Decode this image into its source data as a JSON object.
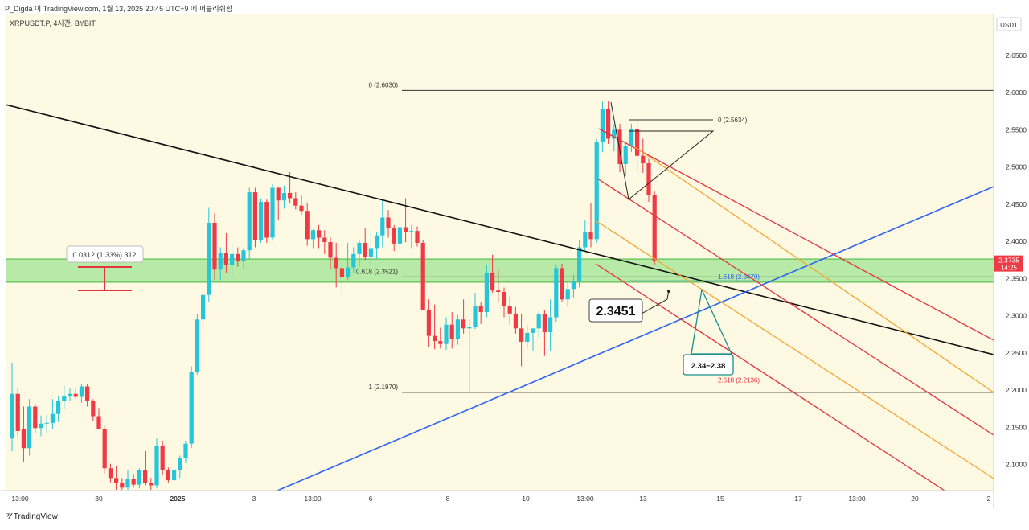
{
  "header": {
    "publish_line": "P_Digda 이 TradingView.com, 1월 13, 2025 20:45 UTC+9 에 퍼블리쉬함"
  },
  "footer": {
    "brand": "TradingView",
    "logo_icon": "tradingview-logo-icon"
  },
  "colors": {
    "background": "#fdf9e3",
    "up": "#26c6da",
    "down": "#ef3a46",
    "zone": "#6fdc6a",
    "trend_black": "#111111",
    "trend_blue": "#2f63f0",
    "fib_red": "#e2333f",
    "fib_orange": "#f6a531",
    "arrow_teal": "#1a8f8f"
  },
  "chart_data": {
    "type": "candlestick",
    "symbol_label": "XRPUSDT.P, 4시간, BYBIT",
    "currency_label": "USDT",
    "ylim": [
      2.065,
      2.705
    ],
    "y_ticks": [
      "2.6500",
      "2.6000",
      "2.5500",
      "2.5000",
      "2.4500",
      "2.4000",
      "2.3500",
      "2.3000",
      "2.2500",
      "2.2000",
      "2.1500",
      "2.1000"
    ],
    "x_ticks": [
      "13:00",
      "30",
      "2025",
      "3",
      "13:00",
      "6",
      "8",
      "10",
      "13:00",
      "13",
      "15",
      "17",
      "13:00",
      "20",
      "2"
    ],
    "price_tag": {
      "value": "2.3735",
      "countdown": "14:25"
    },
    "candles_ohlc": [
      [
        2.135,
        2.237,
        2.118,
        2.195
      ],
      [
        2.195,
        2.202,
        2.138,
        2.145
      ],
      [
        2.148,
        2.178,
        2.104,
        2.122
      ],
      [
        2.122,
        2.188,
        2.112,
        2.178
      ],
      [
        2.178,
        2.182,
        2.142,
        2.149
      ],
      [
        2.149,
        2.166,
        2.138,
        2.155
      ],
      [
        2.155,
        2.167,
        2.142,
        2.156
      ],
      [
        2.156,
        2.188,
        2.148,
        2.168
      ],
      [
        2.168,
        2.192,
        2.157,
        2.186
      ],
      [
        2.186,
        2.206,
        2.175,
        2.192
      ],
      [
        2.192,
        2.203,
        2.185,
        2.195
      ],
      [
        2.195,
        2.203,
        2.188,
        2.191
      ],
      [
        2.191,
        2.208,
        2.183,
        2.205
      ],
      [
        2.205,
        2.208,
        2.178,
        2.186
      ],
      [
        2.186,
        2.188,
        2.158,
        2.165
      ],
      [
        2.165,
        2.176,
        2.148,
        2.148
      ],
      [
        2.148,
        2.152,
        2.088,
        2.095
      ],
      [
        2.095,
        2.101,
        2.076,
        2.082
      ],
      [
        2.082,
        2.098,
        2.066,
        2.075
      ],
      [
        2.075,
        2.082,
        2.066,
        2.069
      ],
      [
        2.069,
        2.092,
        2.066,
        2.081
      ],
      [
        2.081,
        2.087,
        2.069,
        2.073
      ],
      [
        2.073,
        2.095,
        2.068,
        2.093
      ],
      [
        2.093,
        2.118,
        2.072,
        2.075
      ],
      [
        2.075,
        2.082,
        2.066,
        2.072
      ],
      [
        2.072,
        2.135,
        2.068,
        2.125
      ],
      [
        2.125,
        2.132,
        2.086,
        2.092
      ],
      [
        2.092,
        2.096,
        2.076,
        2.079
      ],
      [
        2.079,
        2.095,
        2.077,
        2.093
      ],
      [
        2.093,
        2.112,
        2.082,
        2.109
      ],
      [
        2.109,
        2.132,
        2.102,
        2.128
      ],
      [
        2.128,
        2.232,
        2.122,
        2.225
      ],
      [
        2.225,
        2.302,
        2.221,
        2.295
      ],
      [
        2.295,
        2.332,
        2.281,
        2.328
      ],
      [
        2.328,
        2.445,
        2.318,
        2.425
      ],
      [
        2.425,
        2.438,
        2.348,
        2.362
      ],
      [
        2.362,
        2.392,
        2.348,
        2.385
      ],
      [
        2.385,
        2.411,
        2.358,
        2.368
      ],
      [
        2.368,
        2.396,
        2.352,
        2.383
      ],
      [
        2.383,
        2.392,
        2.366,
        2.374
      ],
      [
        2.374,
        2.392,
        2.363,
        2.388
      ],
      [
        2.388,
        2.472,
        2.376,
        2.466
      ],
      [
        2.466,
        2.472,
        2.392,
        2.402
      ],
      [
        2.402,
        2.458,
        2.398,
        2.453
      ],
      [
        2.453,
        2.456,
        2.398,
        2.405
      ],
      [
        2.405,
        2.477,
        2.401,
        2.472
      ],
      [
        2.472,
        2.473,
        2.428,
        2.455
      ],
      [
        2.455,
        2.475,
        2.444,
        2.465
      ],
      [
        2.465,
        2.493,
        2.452,
        2.458
      ],
      [
        2.458,
        2.466,
        2.443,
        2.448
      ],
      [
        2.448,
        2.462,
        2.436,
        2.441
      ],
      [
        2.441,
        2.452,
        2.394,
        2.403
      ],
      [
        2.403,
        2.416,
        2.391,
        2.415
      ],
      [
        2.415,
        2.422,
        2.391,
        2.405
      ],
      [
        2.405,
        2.415,
        2.383,
        2.399
      ],
      [
        2.399,
        2.405,
        2.362,
        2.378
      ],
      [
        2.378,
        2.398,
        2.338,
        2.364
      ],
      [
        2.364,
        2.368,
        2.328,
        2.352
      ],
      [
        2.352,
        2.398,
        2.348,
        2.365
      ],
      [
        2.365,
        2.392,
        2.357,
        2.383
      ],
      [
        2.383,
        2.401,
        2.366,
        2.398
      ],
      [
        2.398,
        2.418,
        2.375,
        2.379
      ],
      [
        2.379,
        2.415,
        2.366,
        2.391
      ],
      [
        2.391,
        2.412,
        2.376,
        2.408
      ],
      [
        2.408,
        2.455,
        2.392,
        2.432
      ],
      [
        2.432,
        2.442,
        2.405,
        2.418
      ],
      [
        2.418,
        2.422,
        2.387,
        2.397
      ],
      [
        2.397,
        2.422,
        2.389,
        2.419
      ],
      [
        2.419,
        2.458,
        2.399,
        2.412
      ],
      [
        2.412,
        2.422,
        2.391,
        2.414
      ],
      [
        2.414,
        2.42,
        2.393,
        2.398
      ],
      [
        2.398,
        2.402,
        2.308,
        2.308
      ],
      [
        2.308,
        2.322,
        2.258,
        2.273
      ],
      [
        2.273,
        2.315,
        2.255,
        2.266
      ],
      [
        2.266,
        2.284,
        2.256,
        2.262
      ],
      [
        2.262,
        2.298,
        2.254,
        2.288
      ],
      [
        2.288,
        2.305,
        2.256,
        2.269
      ],
      [
        2.269,
        2.301,
        2.261,
        2.295
      ],
      [
        2.295,
        2.322,
        2.276,
        2.283
      ],
      [
        2.283,
        2.295,
        2.198,
        2.285
      ],
      [
        2.285,
        2.331,
        2.282,
        2.313
      ],
      [
        2.313,
        2.318,
        2.289,
        2.305
      ],
      [
        2.305,
        2.368,
        2.298,
        2.358
      ],
      [
        2.358,
        2.382,
        2.331,
        2.334
      ],
      [
        2.334,
        2.362,
        2.319,
        2.332
      ],
      [
        2.332,
        2.338,
        2.298,
        2.313
      ],
      [
        2.313,
        2.326,
        2.288,
        2.303
      ],
      [
        2.303,
        2.312,
        2.276,
        2.283
      ],
      [
        2.283,
        2.303,
        2.232,
        2.265
      ],
      [
        2.265,
        2.288,
        2.256,
        2.277
      ],
      [
        2.277,
        2.283,
        2.252,
        2.283
      ],
      [
        2.283,
        2.306,
        2.271,
        2.302
      ],
      [
        2.302,
        2.308,
        2.246,
        2.278
      ],
      [
        2.278,
        2.322,
        2.253,
        2.298
      ],
      [
        2.298,
        2.368,
        2.292,
        2.364
      ],
      [
        2.364,
        2.37,
        2.319,
        2.322
      ],
      [
        2.322,
        2.346,
        2.312,
        2.336
      ],
      [
        2.336,
        2.355,
        2.324,
        2.346
      ],
      [
        2.346,
        2.402,
        2.338,
        2.392
      ],
      [
        2.392,
        2.428,
        2.386,
        2.412
      ],
      [
        2.412,
        2.452,
        2.392,
        2.403
      ],
      [
        2.403,
        2.538,
        2.398,
        2.533
      ],
      [
        2.533,
        2.588,
        2.52,
        2.578
      ],
      [
        2.578,
        2.588,
        2.531,
        2.538
      ],
      [
        2.538,
        2.558,
        2.521,
        2.55
      ],
      [
        2.55,
        2.558,
        2.493,
        2.504
      ],
      [
        2.504,
        2.534,
        2.488,
        2.528
      ],
      [
        2.528,
        2.558,
        2.52,
        2.551
      ],
      [
        2.551,
        2.562,
        2.493,
        2.515
      ],
      [
        2.515,
        2.538,
        2.492,
        2.505
      ],
      [
        2.505,
        2.511,
        2.453,
        2.462
      ],
      [
        2.462,
        2.467,
        2.368,
        2.3735
      ]
    ],
    "annotations": {
      "measure_label": "0.0312 (1.33%) 312",
      "price_callout": "2.3451",
      "target_box": "2.34~2.38",
      "fib_left": [
        {
          "label": "0 (2.6030)",
          "value": 2.603
        },
        {
          "label": "0.618 (2.3521)",
          "value": 2.3521
        },
        {
          "label": "1 (2.1970)",
          "value": 2.197
        }
      ],
      "fib_right": [
        {
          "label": "0 (2.5634)",
          "value": 2.5634
        },
        {
          "label": "1.618 (2.3470)",
          "value": 2.347
        },
        {
          "label": "2.618 (2.2136)",
          "value": 2.2136
        }
      ],
      "zone": [
        2.3451,
        2.3763
      ]
    }
  }
}
